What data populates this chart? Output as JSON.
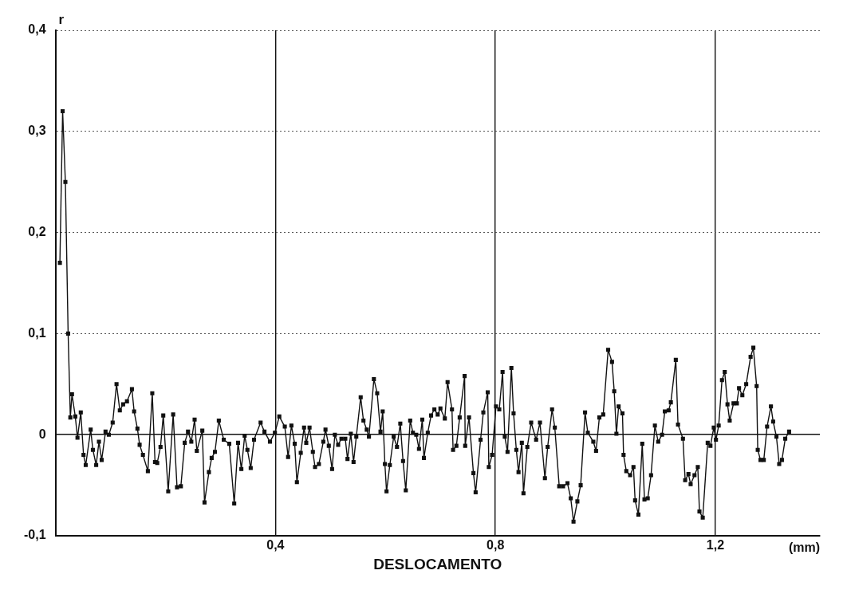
{
  "chart_data": {
    "type": "line",
    "xlabel": "DESLOCAMENTO",
    "ylabel": "r",
    "annotations": [
      "(mm)"
    ],
    "xlim": [
      0,
      1.39
    ],
    "ylim": [
      -0.1,
      0.4
    ],
    "xticks": [
      {
        "value": 0.4,
        "label": "0,4"
      },
      {
        "value": 0.8,
        "label": "0,8"
      },
      {
        "value": 1.2,
        "label": "1,2"
      }
    ],
    "yticks": [
      {
        "value": -0.1,
        "label": "-0,1"
      },
      0,
      {
        "value": 0.1,
        "label": "0,1"
      },
      {
        "value": 0.2,
        "label": "0,2"
      },
      {
        "value": 0.3,
        "label": "0,3"
      },
      {
        "value": 0.4,
        "label": "0,4"
      }
    ],
    "grid": true,
    "legend": false,
    "marker": "square",
    "line_style": "solid",
    "series": [
      {
        "color": "#111111",
        "x": [
          0.008,
          0.013,
          0.018,
          0.023,
          0.027,
          0.03,
          0.036,
          0.04,
          0.046,
          0.051,
          0.055,
          0.064,
          0.068,
          0.074,
          0.079,
          0.084,
          0.091,
          0.097,
          0.104,
          0.111,
          0.117,
          0.123,
          0.13,
          0.139,
          0.143,
          0.149,
          0.153,
          0.159,
          0.168,
          0.176,
          0.181,
          0.185,
          0.191,
          0.196,
          0.205,
          0.214,
          0.221,
          0.228,
          0.235,
          0.241,
          0.247,
          0.253,
          0.257,
          0.267,
          0.271,
          0.279,
          0.284,
          0.29,
          0.297,
          0.306,
          0.316,
          0.325,
          0.332,
          0.338,
          0.344,
          0.349,
          0.355,
          0.361,
          0.373,
          0.38,
          0.39,
          0.399,
          0.407,
          0.417,
          0.423,
          0.429,
          0.435,
          0.439,
          0.446,
          0.452,
          0.456,
          0.462,
          0.468,
          0.472,
          0.479,
          0.487,
          0.491,
          0.497,
          0.503,
          0.508,
          0.514,
          0.52,
          0.527,
          0.531,
          0.537,
          0.542,
          0.547,
          0.555,
          0.56,
          0.566,
          0.57,
          0.579,
          0.585,
          0.591,
          0.595,
          0.599,
          0.602,
          0.608,
          0.615,
          0.621,
          0.627,
          0.632,
          0.637,
          0.645,
          0.65,
          0.656,
          0.661,
          0.667,
          0.67,
          0.677,
          0.683,
          0.689,
          0.695,
          0.7,
          0.708,
          0.713,
          0.721,
          0.723,
          0.729,
          0.735,
          0.744,
          0.745,
          0.752,
          0.76,
          0.764,
          0.773,
          0.778,
          0.786,
          0.788,
          0.794,
          0.801,
          0.807,
          0.813,
          0.817,
          0.822,
          0.829,
          0.833,
          0.838,
          0.842,
          0.848,
          0.851,
          0.858,
          0.865,
          0.874,
          0.881,
          0.89,
          0.895,
          0.903,
          0.908,
          0.916,
          0.923,
          0.931,
          0.937,
          0.942,
          0.949,
          0.955,
          0.963,
          0.968,
          0.978,
          0.983,
          0.989,
          0.996,
          1.005,
          1.012,
          1.016,
          1.02,
          1.024,
          1.031,
          1.033,
          1.038,
          1.045,
          1.051,
          1.054,
          1.06,
          1.067,
          1.071,
          1.077,
          1.083,
          1.09,
          1.096,
          1.103,
          1.108,
          1.115,
          1.119,
          1.128,
          1.132,
          1.141,
          1.145,
          1.151,
          1.155,
          1.162,
          1.168,
          1.171,
          1.177,
          1.186,
          1.191,
          1.197,
          1.201,
          1.206,
          1.212,
          1.217,
          1.222,
          1.226,
          1.233,
          1.239,
          1.243,
          1.249,
          1.256,
          1.264,
          1.269,
          1.275,
          1.277,
          1.282,
          1.288,
          1.294,
          1.301,
          1.305,
          1.311,
          1.316,
          1.321,
          1.327,
          1.334
        ],
        "values": [
          0.17,
          0.32,
          0.25,
          0.1,
          0.017,
          0.04,
          0.018,
          -0.003,
          0.022,
          -0.02,
          -0.03,
          0.005,
          -0.015,
          -0.03,
          -0.007,
          -0.025,
          0.003,
          0,
          0.012,
          0.05,
          0.024,
          0.03,
          0.033,
          0.045,
          0.023,
          0.006,
          -0.01,
          -0.02,
          -0.036,
          0.041,
          -0.027,
          -0.028,
          -0.012,
          0.019,
          -0.056,
          0.02,
          -0.052,
          -0.051,
          -0.008,
          0.003,
          -0.007,
          0.015,
          -0.016,
          0.004,
          -0.067,
          -0.037,
          -0.023,
          -0.017,
          0.014,
          -0.005,
          -0.009,
          -0.068,
          -0.008,
          -0.034,
          -0.001,
          -0.015,
          -0.033,
          -0.005,
          0.012,
          0.003,
          -0.007,
          0.002,
          0.018,
          0.008,
          -0.022,
          0.009,
          -0.009,
          -0.047,
          -0.018,
          0.007,
          -0.008,
          0.007,
          -0.017,
          -0.032,
          -0.029,
          -0.007,
          0.005,
          -0.011,
          -0.034,
          0,
          -0.01,
          -0.004,
          -0.004,
          -0.024,
          0.001,
          -0.027,
          -0.002,
          0.037,
          0.014,
          0.005,
          -0.002,
          0.055,
          0.041,
          0.003,
          0.023,
          -0.029,
          -0.056,
          -0.03,
          -0.002,
          -0.012,
          0.011,
          -0.026,
          -0.055,
          0.014,
          0.002,
          0,
          -0.014,
          0.015,
          -0.023,
          0.002,
          0.019,
          0.025,
          0.02,
          0.026,
          0.016,
          0.052,
          0.025,
          -0.015,
          -0.011,
          0.017,
          0.058,
          -0.011,
          0.017,
          -0.038,
          -0.057,
          -0.005,
          0.022,
          0.042,
          -0.032,
          -0.02,
          0.028,
          0.025,
          0.062,
          -0.002,
          -0.017,
          0.066,
          0.021,
          -0.015,
          -0.037,
          -0.008,
          -0.058,
          -0.012,
          0.012,
          -0.005,
          0.012,
          -0.043,
          -0.012,
          0.025,
          0.007,
          -0.051,
          -0.051,
          -0.048,
          -0.063,
          -0.086,
          -0.066,
          -0.05,
          0.022,
          0.002,
          -0.007,
          -0.016,
          0.017,
          0.02,
          0.084,
          0.072,
          0.043,
          0.001,
          0.028,
          0.021,
          -0.02,
          -0.036,
          -0.04,
          -0.032,
          -0.065,
          -0.079,
          -0.009,
          -0.064,
          -0.063,
          -0.04,
          0.009,
          -0.007,
          0,
          0.023,
          0.024,
          0.032,
          0.074,
          0.01,
          -0.004,
          -0.045,
          -0.039,
          -0.049,
          -0.04,
          -0.032,
          -0.076,
          -0.082,
          -0.008,
          -0.011,
          0.007,
          -0.005,
          0.009,
          0.054,
          0.062,
          0.03,
          0.014,
          0.031,
          0.031,
          0.046,
          0.039,
          0.05,
          0.077,
          0.086,
          0.048,
          -0.015,
          -0.025,
          -0.025,
          0.008,
          0.028,
          0.013,
          -0.002,
          -0.029,
          -0.025,
          -0.004,
          0.003
        ]
      }
    ]
  }
}
